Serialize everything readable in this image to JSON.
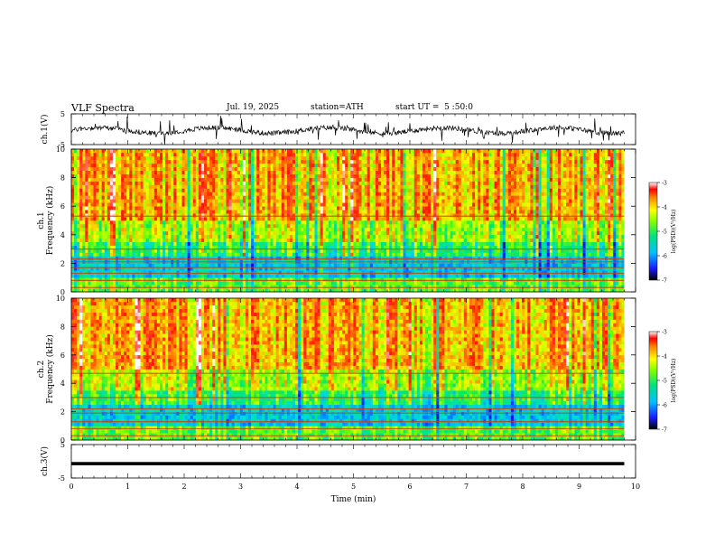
{
  "header": {
    "title": "VLF Spectra",
    "date": "Jul. 19, 2025",
    "station": "station=ATH",
    "start": "start UT =  5 :50:0"
  },
  "chart_data": [
    {
      "id": "ch1-waveform",
      "type": "line",
      "ylabel": "ch.1(V)",
      "ylim": [
        -5,
        5
      ],
      "yticks": [
        "5",
        "-5"
      ],
      "xlim": [
        0,
        10
      ],
      "data_extent_min": 9.8
    },
    {
      "id": "ch1-spectrogram",
      "type": "heatmap",
      "ylabel_line1": "ch.1",
      "ylabel_line2": "Frequency (kHz)",
      "ylim": [
        0,
        10
      ],
      "yticks": [
        "0",
        "2",
        "4",
        "6",
        "8",
        "10"
      ],
      "xlim": [
        0,
        10
      ],
      "data_extent_min": 9.8,
      "colorbar": {
        "label": "log(PSD)(V²/Hz)",
        "range": [
          -7,
          -3
        ],
        "ticks": [
          "-3",
          "-4",
          "-5",
          "-6",
          "-7"
        ]
      },
      "bands_khz": [
        0.3,
        0.8,
        1.3,
        1.7,
        2.1,
        2.3,
        3.0,
        5.3
      ]
    },
    {
      "id": "ch2-spectrogram",
      "type": "heatmap",
      "ylabel_line1": "ch.2",
      "ylabel_line2": "Frequency (kHz)",
      "ylim": [
        0,
        10
      ],
      "yticks": [
        "0",
        "2",
        "4",
        "6",
        "8",
        "10"
      ],
      "xlim": [
        0,
        10
      ],
      "data_extent_min": 9.8,
      "colorbar": {
        "label": "log(PSD)(V²/Hz)",
        "range": [
          -7,
          -3
        ],
        "ticks": [
          "-3",
          "-4",
          "-5",
          "-6",
          "-7"
        ]
      },
      "bands_khz": [
        0.3,
        0.8,
        1.3,
        1.9,
        2.2,
        3.0,
        4.7
      ]
    },
    {
      "id": "ch3-waveform",
      "type": "line",
      "ylabel": "ch.3(V)",
      "xlabel": "Time (min)",
      "ylim": [
        -5,
        5
      ],
      "yticks": [
        "5",
        "-5"
      ],
      "xlim": [
        0,
        10
      ],
      "xticks": [
        "0",
        "1",
        "2",
        "3",
        "4",
        "5",
        "6",
        "7",
        "8",
        "9",
        "10"
      ],
      "data_extent_min": 9.8,
      "level_v": -0.7
    }
  ]
}
